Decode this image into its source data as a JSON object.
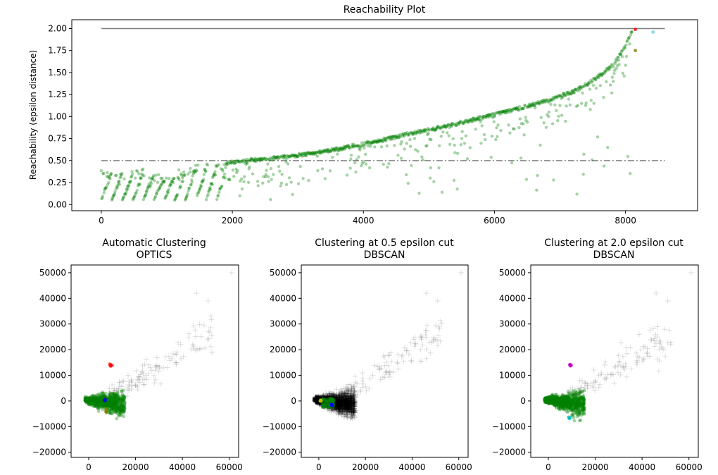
{
  "chart_data": [
    {
      "type": "scatter",
      "title": "Reachability Plot",
      "xlabel": "",
      "ylabel": "Reachability (epsilon distance)",
      "xlim": [
        -450,
        9100
      ],
      "ylim": [
        -0.07,
        2.1
      ],
      "xticks": [
        0,
        2000,
        4000,
        6000,
        8000
      ],
      "yticks": [
        0.0,
        0.25,
        0.5,
        0.75,
        1.0,
        1.25,
        1.5,
        1.75,
        2.0
      ],
      "ytick_labels": [
        "0.00",
        "0.25",
        "0.50",
        "0.75",
        "1.00",
        "1.25",
        "1.50",
        "1.75",
        "2.00"
      ],
      "reference_lines": [
        {
          "y": 2.0,
          "style": "solid",
          "color": "#808080",
          "x_range": [
            0,
            8600
          ]
        },
        {
          "y": 0.5,
          "style": "dashdot",
          "color": "#808080",
          "x_range": [
            0,
            8600
          ]
        }
      ],
      "series": [
        {
          "color": "#008000",
          "alpha": 0.35,
          "note_points": "upper envelope (x, reachability)",
          "x": [
            0,
            200,
            400,
            600,
            800,
            1000,
            1200,
            1400,
            1600,
            1800,
            2000,
            2400,
            2800,
            3200,
            3600,
            4000,
            4400,
            4800,
            5200,
            5600,
            6000,
            6400,
            6800,
            7200,
            7400,
            7600,
            7800,
            7900,
            8000,
            8100
          ],
          "y": [
            0.45,
            0.38,
            0.37,
            0.43,
            0.36,
            0.35,
            0.4,
            0.45,
            0.47,
            0.48,
            0.5,
            0.53,
            0.56,
            0.6,
            0.65,
            0.71,
            0.77,
            0.84,
            0.9,
            0.97,
            1.04,
            1.12,
            1.2,
            1.3,
            1.38,
            1.48,
            1.6,
            1.7,
            1.82,
            2.0
          ]
        },
        {
          "color": "#ff0000",
          "alpha": 0.8,
          "x": [
            8150
          ],
          "y": [
            1.99
          ]
        },
        {
          "color": "#00bfbf",
          "alpha": 0.5,
          "x": [
            8420
          ],
          "y": [
            1.96
          ]
        },
        {
          "color": "#808000",
          "alpha": 0.8,
          "x": [
            8150
          ],
          "y": [
            1.75
          ]
        }
      ]
    },
    {
      "type": "scatter",
      "title": "Automatic Clustering\nOPTICS",
      "title_lines": [
        "Automatic Clustering",
        "OPTICS"
      ],
      "xlim": [
        -7500,
        64000
      ],
      "ylim": [
        -22000,
        53000
      ],
      "xticks": [
        0,
        20000,
        40000,
        60000
      ],
      "yticks": [
        -20000,
        -10000,
        0,
        10000,
        20000,
        30000,
        40000,
        50000
      ],
      "ytick_labels": [
        "−20000",
        "−10000",
        "0",
        "10000",
        "20000",
        "30000",
        "40000",
        "50000"
      ],
      "cluster_colors": [
        "#008000",
        "#ff0000",
        "#0000ff",
        "#808000"
      ],
      "noise": {
        "marker": "+",
        "color": "#000000",
        "alpha": 0.12
      }
    },
    {
      "type": "scatter",
      "title": "Clustering at 0.5 epsilon cut\nDBSCAN",
      "title_lines": [
        "Clustering at 0.5 epsilon cut",
        "DBSCAN"
      ],
      "xlim": [
        -7500,
        64000
      ],
      "ylim": [
        -22000,
        53000
      ],
      "xticks": [
        0,
        20000,
        40000,
        60000
      ],
      "yticks": [
        -20000,
        -10000,
        0,
        10000,
        20000,
        30000,
        40000,
        50000
      ],
      "ytick_labels": [
        "−20000",
        "−10000",
        "0",
        "10000",
        "20000",
        "30000",
        "40000",
        "50000"
      ],
      "cluster_colors": [
        "#000000",
        "#008000",
        "#0000ff",
        "#bfbf00"
      ],
      "noise": {
        "marker": "+",
        "color": "#000000",
        "alpha": 0.12
      }
    },
    {
      "type": "scatter",
      "title": "Clustering at 2.0 epsilon cut\nDBSCAN",
      "title_lines": [
        "Clustering at 2.0 epsilon cut",
        "DBSCAN"
      ],
      "xlim": [
        -7500,
        64000
      ],
      "ylim": [
        -22000,
        53000
      ],
      "xticks": [
        0,
        20000,
        40000,
        60000
      ],
      "yticks": [
        -20000,
        -10000,
        0,
        10000,
        20000,
        30000,
        40000,
        50000
      ],
      "ytick_labels": [
        "−20000",
        "−10000",
        "0",
        "10000",
        "20000",
        "30000",
        "40000",
        "50000"
      ],
      "cluster_colors": [
        "#008000",
        "#bf00bf",
        "#00bfbf"
      ],
      "noise": {
        "marker": "+",
        "color": "#000000",
        "alpha": 0.12
      }
    }
  ]
}
